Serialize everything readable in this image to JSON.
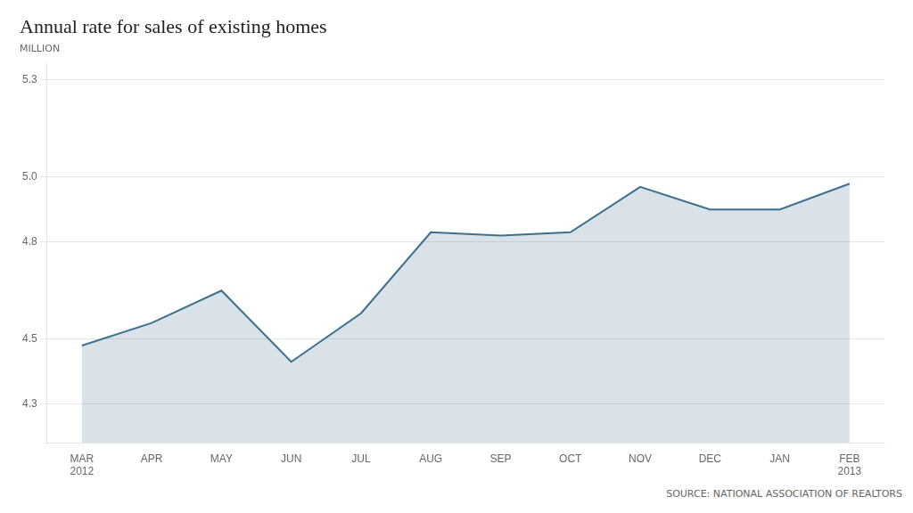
{
  "chart_data": {
    "type": "line",
    "title": "Annual rate for sales of existing homes",
    "subtitle": "MILLION",
    "annotations": [
      "SOURCE: NATIONAL ASSOCIATION OF REALTORS"
    ],
    "categories": [
      "MAR\n2012",
      "APR",
      "MAY",
      "JUN",
      "JUL",
      "AUG",
      "SEP",
      "OCT",
      "NOV",
      "DEC",
      "JAN",
      "FEB\n2013"
    ],
    "values": [
      4.48,
      4.55,
      4.65,
      4.43,
      4.58,
      4.83,
      4.82,
      4.83,
      4.97,
      4.9,
      4.9,
      4.98
    ],
    "color": "#3d6f8e",
    "ylim": [
      4.18,
      5.35
    ],
    "yticks": [
      4.3,
      4.5,
      4.8,
      {
        "value": 5.0,
        "label": "5.0"
      },
      5.3
    ],
    "grid": true
  }
}
